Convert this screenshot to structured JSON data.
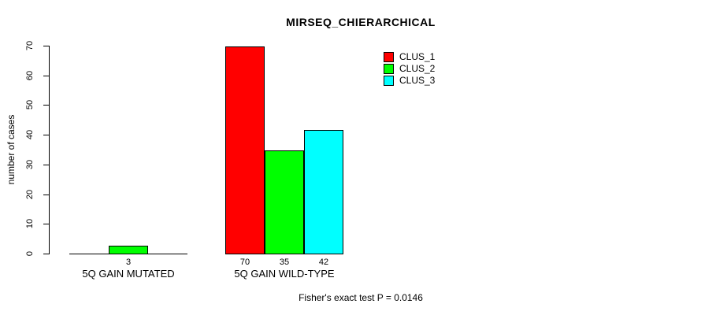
{
  "chart_data": {
    "type": "bar",
    "title": "MIRSEQ_CHIERARCHICAL",
    "ylabel": "number of cases",
    "xlabel": "",
    "categories": [
      "5Q GAIN MUTATED",
      "5Q GAIN WILD-TYPE"
    ],
    "series": [
      {
        "name": "CLUS_1",
        "color": "#FF0000",
        "values": [
          0,
          70
        ]
      },
      {
        "name": "CLUS_2",
        "color": "#00FF00",
        "values": [
          3,
          35
        ]
      },
      {
        "name": "CLUS_3",
        "color": "#00FFFF",
        "values": [
          0,
          42
        ]
      }
    ],
    "value_labels": [
      [
        "",
        "3",
        ""
      ],
      [
        "70",
        "35",
        "42"
      ]
    ],
    "yticks": [
      0,
      10,
      20,
      30,
      40,
      50,
      60,
      70
    ],
    "ylim": [
      0,
      70
    ],
    "grid": false,
    "legend": {
      "position": "top-right-inside",
      "entries": [
        "CLUS_1",
        "CLUS_2",
        "CLUS_3"
      ]
    },
    "annotation": "Fisher's exact test P = 0.0146",
    "axis_color": "#000000",
    "background_color": "#FFFFFF"
  }
}
